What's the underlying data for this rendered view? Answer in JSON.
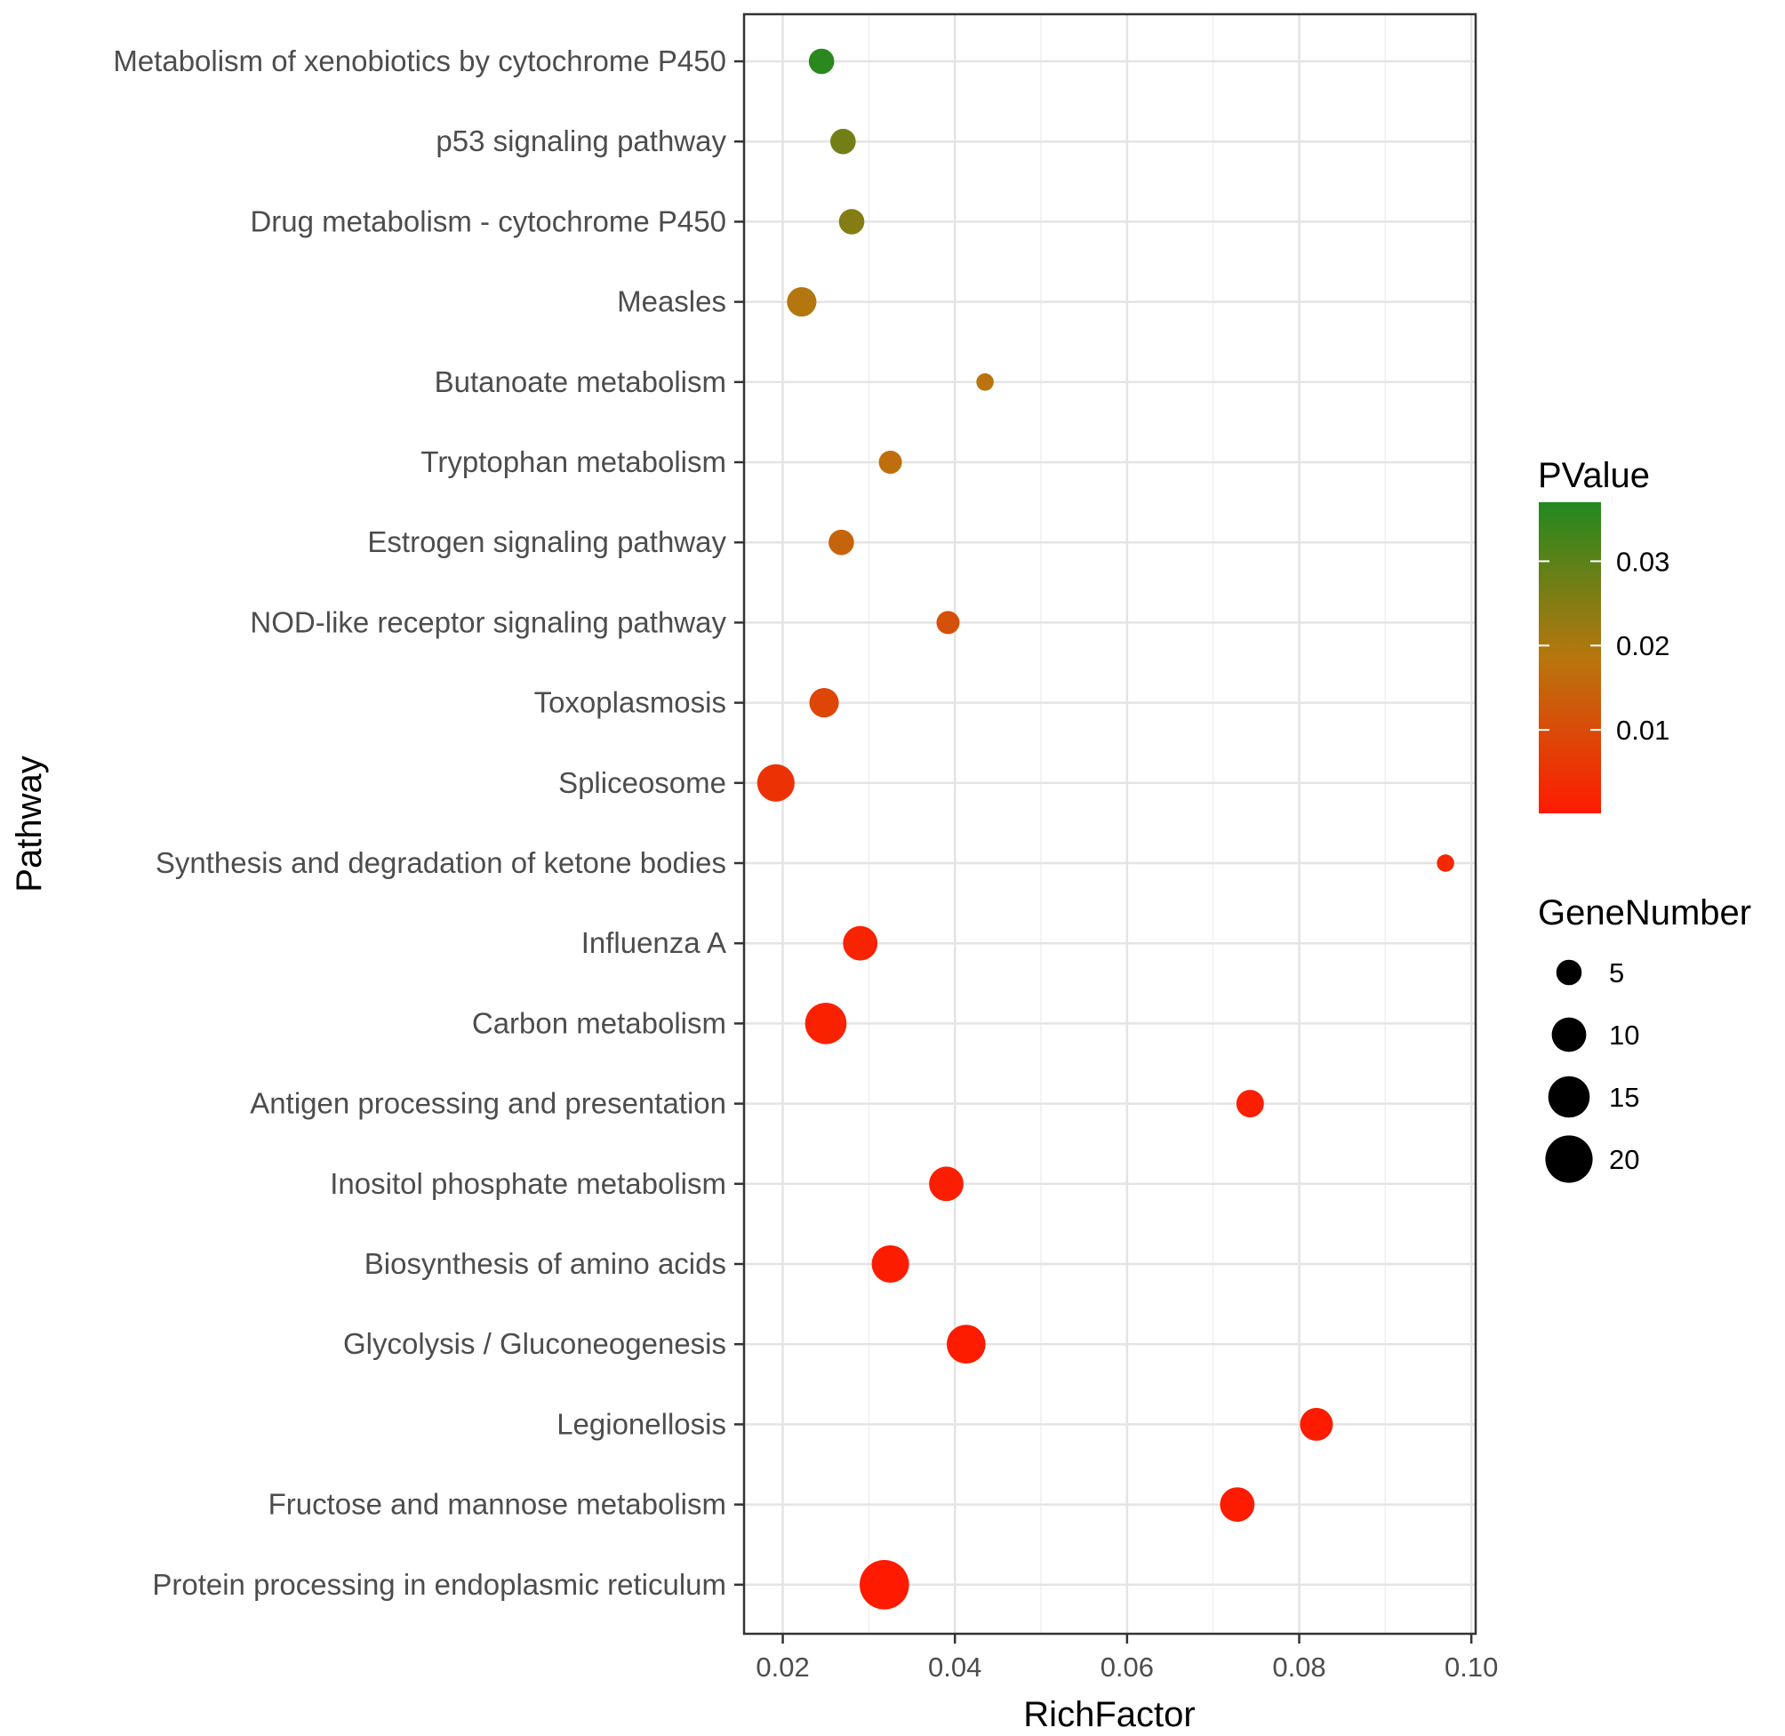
{
  "chart_data": {
    "type": "scatter",
    "title": "",
    "xlabel": "RichFactor",
    "ylabel": "Pathway",
    "xlim": [
      0.0155,
      0.1005
    ],
    "xticks": [
      0.02,
      0.04,
      0.06,
      0.08,
      0.1
    ],
    "xtick_labels": [
      "0.02",
      "0.04",
      "0.06",
      "0.08",
      "0.10"
    ],
    "grid": true,
    "categories": [
      "Metabolism of xenobiotics by cytochrome P450",
      "p53 signaling pathway",
      "Drug metabolism - cytochrome P450",
      "Measles",
      "Butanoate metabolism",
      "Tryptophan metabolism",
      "Estrogen signaling pathway",
      "NOD-like receptor signaling pathway",
      "Toxoplasmosis",
      "Spliceosome",
      "Synthesis and degradation of ketone bodies",
      "Influenza A",
      "Carbon metabolism",
      "Antigen processing and presentation",
      "Inositol phosphate metabolism",
      "Biosynthesis of amino acids",
      "Glycolysis / Gluconeogenesis",
      "Legionellosis",
      "Fructose and mannose metabolism",
      "Protein processing in endoplasmic reticulum"
    ],
    "points": [
      {
        "pathway": "Metabolism of xenobiotics by cytochrome P450",
        "rich_factor": 0.0245,
        "gene_number": 5,
        "pvalue": 0.036
      },
      {
        "pathway": "p53 signaling pathway",
        "rich_factor": 0.027,
        "gene_number": 5,
        "pvalue": 0.027
      },
      {
        "pathway": "Drug metabolism - cytochrome P450",
        "rich_factor": 0.028,
        "gene_number": 5,
        "pvalue": 0.025
      },
      {
        "pathway": "Measles",
        "rich_factor": 0.0222,
        "gene_number": 7,
        "pvalue": 0.019
      },
      {
        "pathway": "Butanoate metabolism",
        "rich_factor": 0.0435,
        "gene_number": 2,
        "pvalue": 0.018
      },
      {
        "pathway": "Tryptophan metabolism",
        "rich_factor": 0.0325,
        "gene_number": 4,
        "pvalue": 0.017
      },
      {
        "pathway": "Estrogen signaling pathway",
        "rich_factor": 0.0268,
        "gene_number": 5,
        "pvalue": 0.015
      },
      {
        "pathway": "NOD-like receptor signaling pathway",
        "rich_factor": 0.0392,
        "gene_number": 4,
        "pvalue": 0.011
      },
      {
        "pathway": "Toxoplasmosis",
        "rich_factor": 0.0248,
        "gene_number": 7,
        "pvalue": 0.009
      },
      {
        "pathway": "Spliceosome",
        "rich_factor": 0.0192,
        "gene_number": 12,
        "pvalue": 0.005
      },
      {
        "pathway": "Synthesis and degradation of ketone bodies",
        "rich_factor": 0.097,
        "gene_number": 2,
        "pvalue": 0.003
      },
      {
        "pathway": "Influenza A",
        "rich_factor": 0.029,
        "gene_number": 10,
        "pvalue": 0.002
      },
      {
        "pathway": "Carbon metabolism",
        "rich_factor": 0.025,
        "gene_number": 15,
        "pvalue": 0.0015
      },
      {
        "pathway": "Antigen processing and presentation",
        "rich_factor": 0.0743,
        "gene_number": 6,
        "pvalue": 0.001
      },
      {
        "pathway": "Inositol phosphate metabolism",
        "rich_factor": 0.039,
        "gene_number": 10,
        "pvalue": 0.001
      },
      {
        "pathway": "Biosynthesis of amino acids",
        "rich_factor": 0.0325,
        "gene_number": 12,
        "pvalue": 0.0008
      },
      {
        "pathway": "Glycolysis / Gluconeogenesis",
        "rich_factor": 0.0413,
        "gene_number": 13,
        "pvalue": 0.0006
      },
      {
        "pathway": "Legionellosis",
        "rich_factor": 0.082,
        "gene_number": 9,
        "pvalue": 0.0005
      },
      {
        "pathway": "Fructose and mannose metabolism",
        "rich_factor": 0.0728,
        "gene_number": 10,
        "pvalue": 0.0003
      },
      {
        "pathway": "Protein processing in endoplasmic reticulum",
        "rich_factor": 0.0318,
        "gene_number": 22,
        "pvalue": 0.0001
      }
    ],
    "color_legend": {
      "title": "PValue",
      "range": [
        0.0001,
        0.037
      ],
      "ticks": [
        0.01,
        0.02,
        0.03
      ],
      "tick_labels": [
        "0.01",
        "0.02",
        "0.03"
      ],
      "low_color": "#ff1a00",
      "mid_color": "#b8760e",
      "high_color": "#22891f",
      "placement": "right"
    },
    "size_legend": {
      "title": "GeneNumber",
      "values": [
        5,
        10,
        15,
        20
      ],
      "labels": [
        "5",
        "10",
        "15",
        "20"
      ],
      "placement": "right"
    }
  }
}
